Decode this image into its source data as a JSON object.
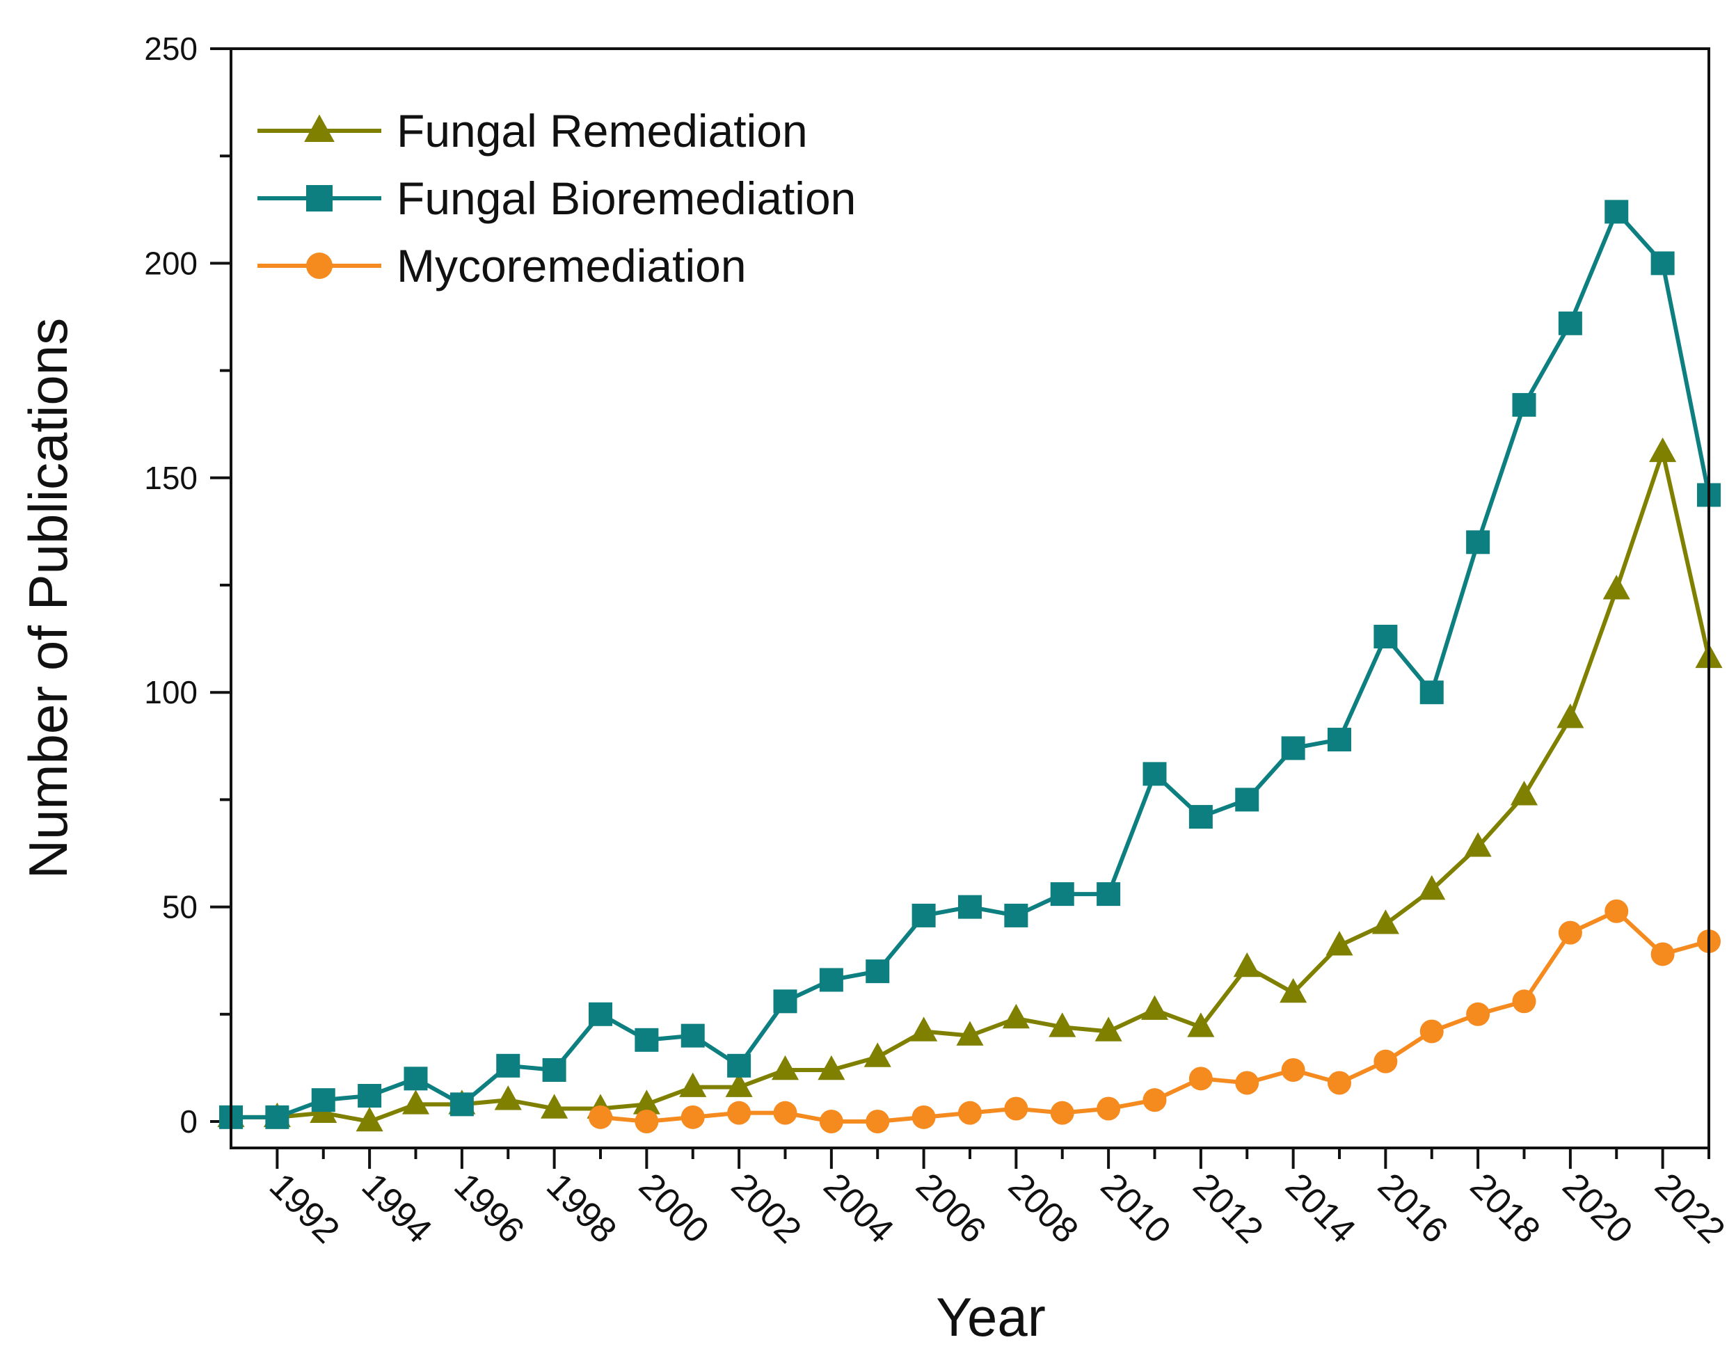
{
  "chart_data": {
    "type": "line",
    "title": "",
    "xlabel": "Year",
    "ylabel": "Number of Publications",
    "xlim": [
      1991,
      2023
    ],
    "ylim": [
      0,
      250
    ],
    "yticks": [
      0,
      50,
      100,
      150,
      200,
      250
    ],
    "yticks_minor": [
      25,
      75,
      125,
      175,
      225
    ],
    "xtick_labels": [
      "1992",
      "1994",
      "1996",
      "1998",
      "2000",
      "2002",
      "2004",
      "2006",
      "2008",
      "2010",
      "2012",
      "2014",
      "2016",
      "2018",
      "2020",
      "2022"
    ],
    "grid": false,
    "legend_position": "top-left",
    "series": [
      {
        "name": "Fungal Remediation",
        "color": "#808000",
        "marker": "triangle",
        "x": [
          1991,
          1992,
          1993,
          1994,
          1995,
          1996,
          1997,
          1998,
          1999,
          2000,
          2001,
          2002,
          2003,
          2004,
          2005,
          2006,
          2007,
          2008,
          2009,
          2010,
          2011,
          2012,
          2013,
          2014,
          2015,
          2016,
          2017,
          2018,
          2019,
          2020,
          2021,
          2022,
          2023
        ],
        "values": [
          1,
          1,
          2,
          0,
          4,
          4,
          5,
          3,
          3,
          4,
          8,
          8,
          12,
          12,
          15,
          21,
          20,
          24,
          22,
          21,
          26,
          22,
          36,
          30,
          41,
          46,
          54,
          64,
          76,
          94,
          124,
          156,
          108
        ]
      },
      {
        "name": "Fungal Bioremediation",
        "color": "#0e7f80",
        "marker": "square",
        "x": [
          1991,
          1992,
          1993,
          1994,
          1995,
          1996,
          1997,
          1998,
          1999,
          2000,
          2001,
          2002,
          2003,
          2004,
          2005,
          2006,
          2007,
          2008,
          2009,
          2010,
          2011,
          2012,
          2013,
          2014,
          2015,
          2016,
          2017,
          2018,
          2019,
          2020,
          2021,
          2022,
          2023
        ],
        "values": [
          1,
          1,
          5,
          6,
          10,
          4,
          13,
          12,
          25,
          19,
          20,
          13,
          28,
          33,
          35,
          48,
          50,
          48,
          53,
          53,
          81,
          71,
          75,
          87,
          89,
          113,
          100,
          135,
          167,
          186,
          212,
          200,
          146
        ]
      },
      {
        "name": "Mycoremediation",
        "color": "#f58a1f",
        "marker": "circle",
        "x": [
          1999,
          2000,
          2001,
          2002,
          2003,
          2004,
          2005,
          2006,
          2007,
          2008,
          2009,
          2010,
          2011,
          2012,
          2013,
          2014,
          2015,
          2016,
          2017,
          2018,
          2019,
          2020,
          2021,
          2022,
          2023
        ],
        "values": [
          1,
          0,
          1,
          2,
          2,
          0,
          0,
          1,
          2,
          3,
          2,
          3,
          5,
          10,
          9,
          12,
          9,
          14,
          21,
          25,
          28,
          44,
          49,
          39,
          42
        ]
      }
    ]
  }
}
